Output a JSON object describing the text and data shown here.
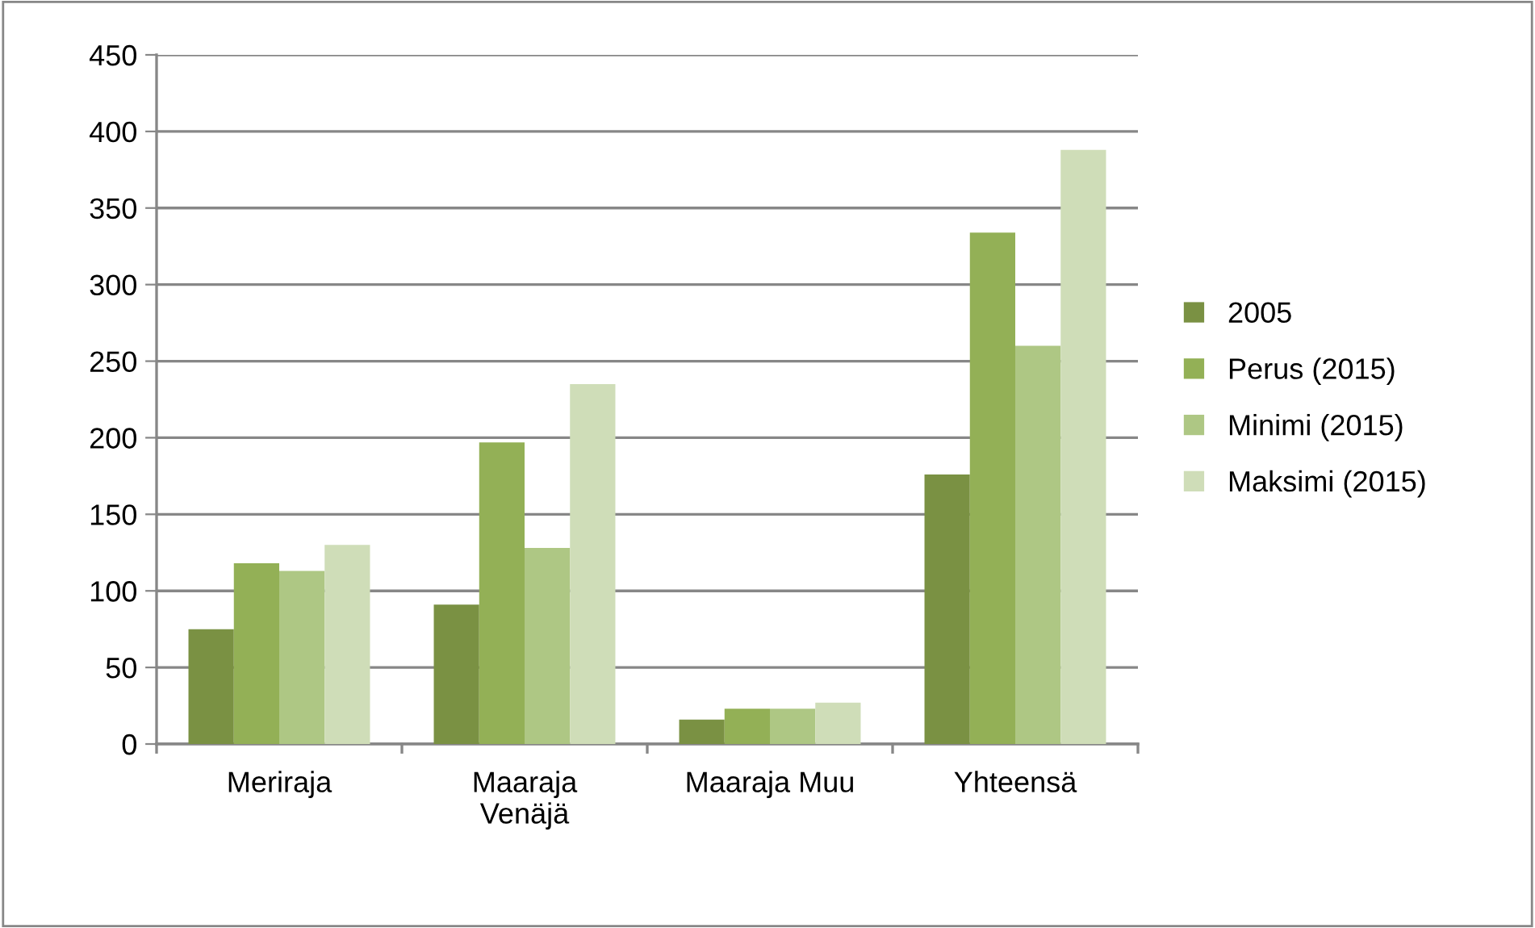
{
  "chart_data": {
    "type": "bar",
    "categories": [
      "Meriraja",
      "Maaraja\nVenäjä",
      "Maaraja Muu",
      "Yhteensä"
    ],
    "series": [
      {
        "name": "2005",
        "color": "#7a9143",
        "values": [
          75,
          91,
          16,
          176
        ]
      },
      {
        "name": "Perus (2015)",
        "color": "#93b056",
        "values": [
          118,
          197,
          23,
          334
        ]
      },
      {
        "name": "Minimi (2015)",
        "color": "#aec784",
        "values": [
          113,
          128,
          23,
          260
        ]
      },
      {
        "name": "Maksimi (2015)",
        "color": "#cfddb8",
        "values": [
          130,
          235,
          27,
          388
        ]
      }
    ],
    "ylim": [
      0,
      450
    ],
    "yticks": [
      0,
      50,
      100,
      150,
      200,
      250,
      300,
      350,
      400,
      450
    ],
    "grid": "y",
    "legend": "right"
  }
}
